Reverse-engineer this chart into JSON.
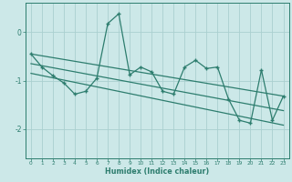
{
  "xlabel": "Humidex (Indice chaleur)",
  "xlim": [
    -0.5,
    23.5
  ],
  "ylim": [
    -2.6,
    0.6
  ],
  "yticks": [
    0,
    -1,
    -2
  ],
  "xticks": [
    0,
    1,
    2,
    3,
    4,
    5,
    6,
    7,
    8,
    9,
    10,
    11,
    12,
    13,
    14,
    15,
    16,
    17,
    18,
    19,
    20,
    21,
    22,
    23
  ],
  "bg_color": "#cce8e8",
  "line_color": "#2d7d6e",
  "grid_color": "#aacfcf",
  "scatter_x": [
    0,
    1,
    2,
    3,
    4,
    5,
    6,
    7,
    8,
    9,
    10,
    11,
    12,
    13,
    14,
    15,
    16,
    17,
    18,
    19,
    20,
    21,
    22,
    23
  ],
  "scatter_y": [
    -0.45,
    -0.72,
    -0.9,
    -1.05,
    -1.28,
    -1.22,
    -0.95,
    0.18,
    0.38,
    -0.88,
    -0.72,
    -0.82,
    -1.22,
    -1.28,
    -0.72,
    -0.58,
    -0.75,
    -0.72,
    -1.38,
    -1.82,
    -1.88,
    -0.78,
    -1.82,
    -1.32
  ],
  "trend1_x": [
    0,
    23
  ],
  "trend1_y": [
    -0.45,
    -1.32
  ],
  "trend2_x": [
    0,
    23
  ],
  "trend2_y": [
    -0.85,
    -1.92
  ],
  "trend3_x": [
    0,
    23
  ],
  "trend3_y": [
    -0.65,
    -1.62
  ]
}
